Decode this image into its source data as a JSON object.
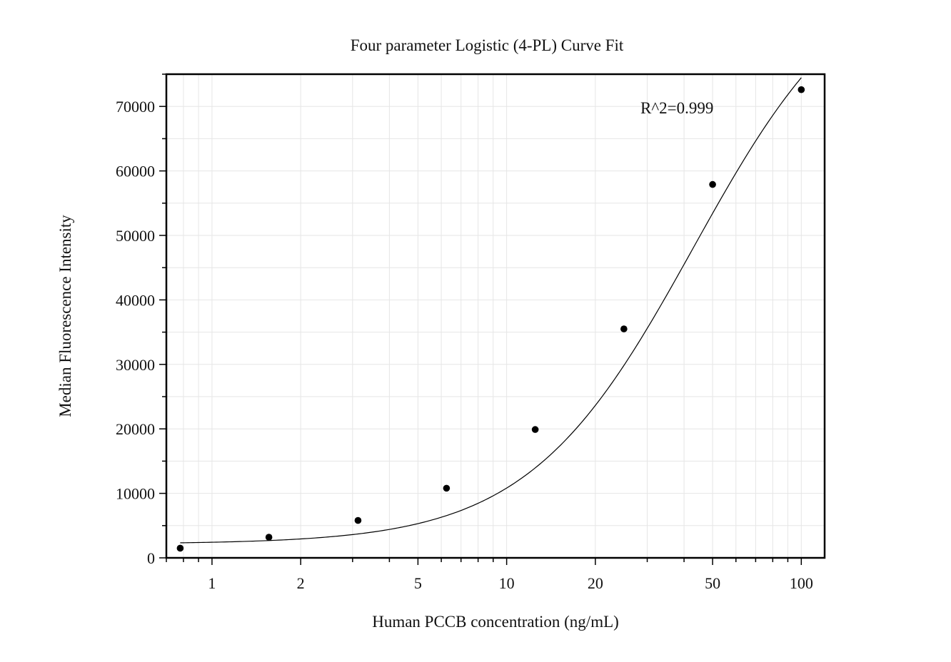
{
  "chart_data": {
    "type": "scatter",
    "title": "Four parameter Logistic (4-PL) Curve Fit",
    "xlabel": "Human PCCB concentration (ng/mL)",
    "ylabel": "Median Fluorescence Intensity",
    "x_scale": "log",
    "xlim": [
      0.7,
      120
    ],
    "ylim": [
      0,
      75000
    ],
    "x_ticks": [
      1,
      2,
      5,
      10,
      20,
      50,
      100
    ],
    "x_tick_labels": [
      "1",
      "2",
      "5",
      "10",
      "20",
      "50",
      "100"
    ],
    "y_ticks": [
      0,
      10000,
      20000,
      30000,
      40000,
      50000,
      60000,
      70000
    ],
    "y_tick_labels": [
      "0",
      "10000",
      "20000",
      "30000",
      "40000",
      "50000",
      "60000",
      "70000"
    ],
    "grid": true,
    "annotation": "R^2=0.999",
    "series": [
      {
        "type": "scatter",
        "x": [
          0.78,
          1.56,
          3.13,
          6.25,
          12.5,
          25,
          50,
          100
        ],
        "y": [
          1500,
          3200,
          5800,
          10800,
          19900,
          35500,
          57900,
          72600
        ]
      }
    ],
    "fit": {
      "type": "4PL",
      "params": {
        "A": 2150,
        "B": 1.55,
        "C": 43,
        "D": 94000
      },
      "x_range": [
        0.78,
        100
      ]
    },
    "colors": {
      "axis": "#000000",
      "grid": "#e6e6e6",
      "marker": "#000000",
      "curve": "#000000"
    }
  }
}
